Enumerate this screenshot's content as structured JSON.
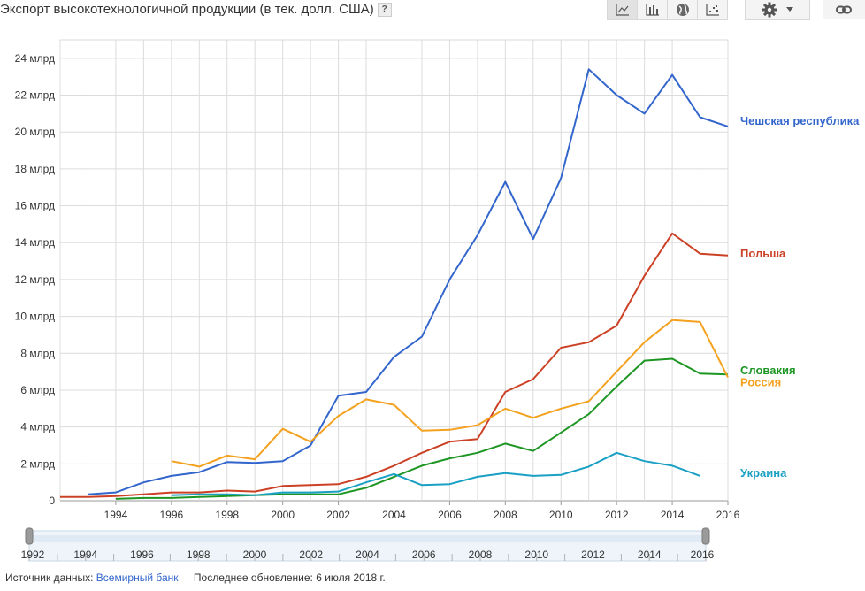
{
  "header": {
    "title": "Экспорт высокотехнологичной продукции (в тек. долл. США)",
    "help": "?"
  },
  "toolbar": {
    "buttons": [
      {
        "name": "line-chart-button",
        "icon": "line-chart-icon",
        "active": true
      },
      {
        "name": "bar-chart-button",
        "icon": "bar-chart-icon",
        "active": false
      },
      {
        "name": "map-button",
        "icon": "globe-icon",
        "active": false
      },
      {
        "name": "scatter-chart-button",
        "icon": "scatter-chart-icon",
        "active": false
      }
    ],
    "settings_icon": "gear-icon",
    "link_icon": "link-icon"
  },
  "chart_data": {
    "type": "line",
    "title": "Экспорт высокотехнологичной продукции (в тек. долл. США)",
    "xlim": [
      1992,
      2016
    ],
    "ylim": [
      0,
      25
    ],
    "yticks": [
      {
        "v": 0,
        "label": "0"
      },
      {
        "v": 2,
        "label": "2 млрд"
      },
      {
        "v": 4,
        "label": "4 млрд"
      },
      {
        "v": 6,
        "label": "6 млрд"
      },
      {
        "v": 8,
        "label": "8 млрд"
      },
      {
        "v": 10,
        "label": "10 млрд"
      },
      {
        "v": 12,
        "label": "12 млрд"
      },
      {
        "v": 14,
        "label": "14 млрд"
      },
      {
        "v": 16,
        "label": "16 млрд"
      },
      {
        "v": 18,
        "label": "18 млрд"
      },
      {
        "v": 20,
        "label": "20 млрд"
      },
      {
        "v": 22,
        "label": "22 млрд"
      },
      {
        "v": 24,
        "label": "24 млрд"
      }
    ],
    "xticks": [
      "1994",
      "1996",
      "1998",
      "2000",
      "2002",
      "2004",
      "2006",
      "2008",
      "2010",
      "2012",
      "2014",
      "2016"
    ],
    "grid": true,
    "series": [
      {
        "name": "Чешская республика",
        "color": "#3366cc",
        "x": [
          1993,
          1994,
          1995,
          1996,
          1997,
          1998,
          1999,
          2000,
          2001,
          2002,
          2003,
          2004,
          2005,
          2006,
          2007,
          2008,
          2009,
          2010,
          2011,
          2012,
          2013,
          2014,
          2015,
          2016
        ],
        "values": [
          0.35,
          0.45,
          1.0,
          1.35,
          1.55,
          2.1,
          2.05,
          2.15,
          3.0,
          5.7,
          5.9,
          7.8,
          8.9,
          12.0,
          14.4,
          17.3,
          14.2,
          17.5,
          23.4,
          22.0,
          21.0,
          23.1,
          20.8,
          20.3
        ]
      },
      {
        "name": "Польша",
        "color": "#cc4125",
        "x": [
          1992,
          1993,
          1994,
          1995,
          1996,
          1997,
          1998,
          1999,
          2000,
          2001,
          2002,
          2003,
          2004,
          2005,
          2006,
          2007,
          2008,
          2009,
          2010,
          2011,
          2012,
          2013,
          2014,
          2015,
          2016
        ],
        "values": [
          0.2,
          0.2,
          0.25,
          0.35,
          0.45,
          0.45,
          0.55,
          0.5,
          0.8,
          0.85,
          0.9,
          1.3,
          1.9,
          2.6,
          3.2,
          3.35,
          5.9,
          6.6,
          8.3,
          8.6,
          9.5,
          12.2,
          14.5,
          13.4,
          13.3
        ]
      },
      {
        "name": "Словакия",
        "color": "#1e9624",
        "x": [
          1994,
          1995,
          1996,
          1997,
          1998,
          1999,
          2000,
          2001,
          2002,
          2003,
          2004,
          2005,
          2006,
          2007,
          2008,
          2009,
          2010,
          2011,
          2012,
          2013,
          2014,
          2015,
          2016
        ],
        "values": [
          0.1,
          0.15,
          0.15,
          0.2,
          0.25,
          0.3,
          0.35,
          0.35,
          0.35,
          0.7,
          1.3,
          1.9,
          2.3,
          2.6,
          3.1,
          2.7,
          3.7,
          4.7,
          6.2,
          7.6,
          7.7,
          6.9,
          6.85
        ]
      },
      {
        "name": "Россия",
        "color": "#f4a11f",
        "x": [
          1996,
          1997,
          1998,
          1999,
          2000,
          2001,
          2002,
          2003,
          2004,
          2005,
          2006,
          2007,
          2008,
          2009,
          2010,
          2011,
          2012,
          2013,
          2014,
          2015,
          2016
        ],
        "values": [
          2.15,
          1.85,
          2.45,
          2.25,
          3.9,
          3.2,
          4.6,
          5.5,
          5.2,
          3.8,
          3.85,
          4.1,
          5.0,
          4.5,
          5.0,
          5.4,
          7.0,
          8.6,
          9.8,
          9.7,
          6.7
        ]
      },
      {
        "name": "Украина",
        "color": "#1aa0c4",
        "x": [
          1996,
          1997,
          1998,
          1999,
          2000,
          2001,
          2002,
          2003,
          2004,
          2005,
          2006,
          2007,
          2008,
          2009,
          2010,
          2011,
          2012,
          2013,
          2014,
          2015
        ],
        "values": [
          0.3,
          0.35,
          0.35,
          0.3,
          0.45,
          0.45,
          0.5,
          1.0,
          1.45,
          0.85,
          0.9,
          1.3,
          1.5,
          1.35,
          1.4,
          1.85,
          2.6,
          2.15,
          1.9,
          1.35
        ]
      }
    ]
  },
  "range_slider": {
    "ticks": [
      "1992",
      "1994",
      "1996",
      "1998",
      "2000",
      "2002",
      "2004",
      "2006",
      "2008",
      "2010",
      "2012",
      "2014",
      "2016"
    ],
    "start": 1992,
    "end": 2016
  },
  "footer": {
    "source_label": "Источник данных:",
    "source_link": "Всемирный банк",
    "updated": "Последнее обновление: 6 июля 2018 г."
  }
}
